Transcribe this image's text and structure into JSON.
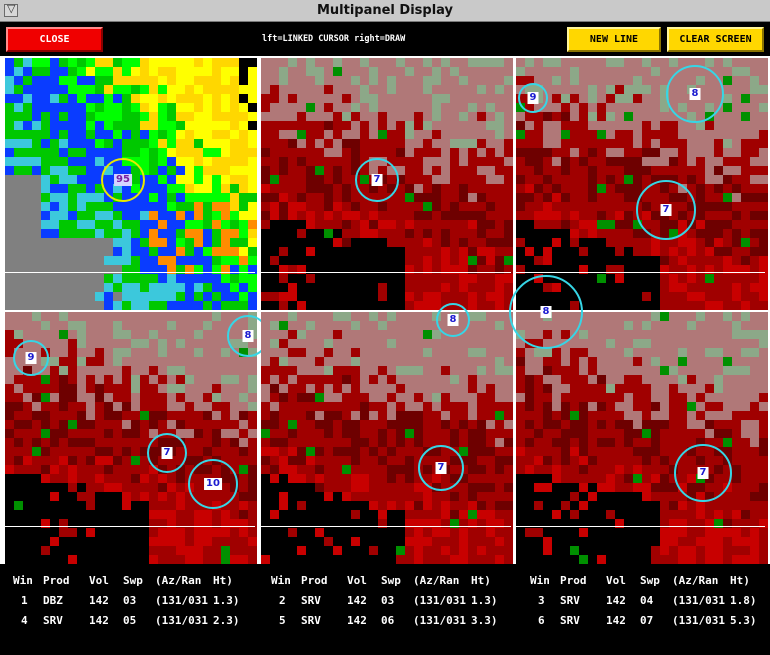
{
  "window": {
    "title": "Multipanel Display",
    "menu_glyph": "▽"
  },
  "toolbar": {
    "close_label": "CLOSE",
    "help_text": "lft=LINKED CURSOR  right=DRAW",
    "new_line_label": "NEW LINE",
    "clear_screen_label": "CLEAR SCREEN"
  },
  "colors": {
    "reflectivity": [
      "#3cc8dc",
      "#0a3cff",
      "#00ff00",
      "#00c800",
      "#ffff00",
      "#ffd700",
      "#ff8c00",
      "#808080"
    ],
    "velocity": [
      "#000000",
      "#6e0000",
      "#a00000",
      "#c80000",
      "#b07878",
      "#8ca888",
      "#009000"
    ],
    "marker_cyan": "#36d6e6",
    "marker_yellow": "#e8e800"
  },
  "panels": [
    {
      "win": "1",
      "markers": [
        {
          "label": "95"
        }
      ]
    },
    {
      "win": "2",
      "markers": [
        {
          "label": "7"
        }
      ]
    },
    {
      "win": "3",
      "markers": [
        {
          "label": "9"
        },
        {
          "label": "8"
        },
        {
          "label": "7"
        }
      ]
    },
    {
      "win": "4",
      "markers": [
        {
          "label": "9"
        },
        {
          "label": "8"
        },
        {
          "label": "7"
        },
        {
          "label": "10"
        }
      ]
    },
    {
      "win": "5",
      "markers": [
        {
          "label": "8"
        },
        {
          "label": "7"
        }
      ]
    },
    {
      "win": "6",
      "markers": [
        {
          "label": "8"
        },
        {
          "label": "7"
        }
      ]
    }
  ],
  "table": {
    "headers": [
      "Win",
      "Prod",
      "Vol",
      "Swp",
      "(Az/Ran",
      "Ht)"
    ],
    "groups": [
      [
        {
          "win": "1",
          "prod": "DBZ",
          "vol": "142",
          "swp": "03",
          "azran": "(131/031",
          "ht": "1.3)"
        },
        {
          "win": "4",
          "prod": "SRV",
          "vol": "142",
          "swp": "05",
          "azran": "(131/031",
          "ht": "2.3)"
        }
      ],
      [
        {
          "win": "2",
          "prod": "SRV",
          "vol": "142",
          "swp": "03",
          "azran": "(131/031",
          "ht": "1.3)"
        },
        {
          "win": "5",
          "prod": "SRV",
          "vol": "142",
          "swp": "06",
          "azran": "(131/031",
          "ht": "3.3)"
        }
      ],
      [
        {
          "win": "3",
          "prod": "SRV",
          "vol": "142",
          "swp": "04",
          "azran": "(131/031",
          "ht": "1.8)"
        },
        {
          "win": "6",
          "prod": "SRV",
          "vol": "142",
          "swp": "07",
          "azran": "(131/031",
          "ht": "5.3)"
        }
      ]
    ]
  }
}
